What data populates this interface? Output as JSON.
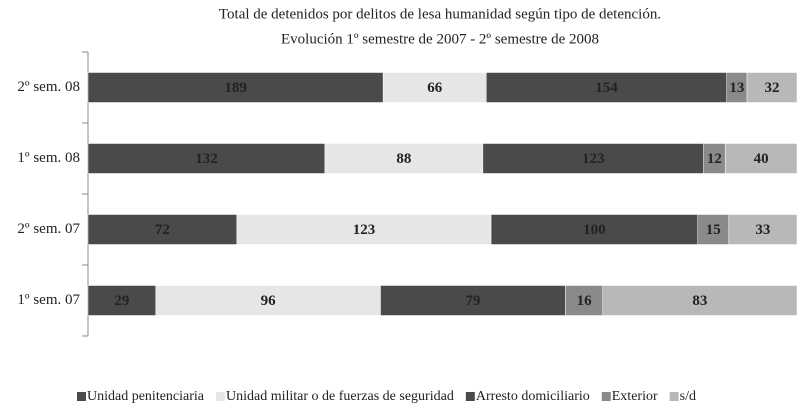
{
  "chart_data": {
    "type": "stacked_bar_100",
    "orientation": "horizontal",
    "title": "Total de detenidos por delitos de lesa humanidad según tipo de detención.",
    "subtitle": "Evolución 1º semestre de 2007 - 2º semestre de 2008",
    "categories": [
      "2º sem. 08",
      "1º sem. 08",
      "2º sem. 07",
      "1º sem. 07"
    ],
    "series": [
      {
        "name": "Unidad penitenciaria",
        "color": "#4a4a4a",
        "values": [
          189,
          132,
          72,
          29
        ]
      },
      {
        "name": "Unidad militar o de fuerzas de seguridad",
        "color": "#e6e6e6",
        "values": [
          66,
          88,
          123,
          96
        ]
      },
      {
        "name": "Arresto domiciliario",
        "color": "#4a4a4a",
        "values": [
          154,
          123,
          100,
          79
        ]
      },
      {
        "name": "Exterior",
        "color": "#8a8a8a",
        "values": [
          13,
          12,
          15,
          16
        ]
      },
      {
        "name": "s/d",
        "color": "#b8b8b8",
        "values": [
          32,
          40,
          33,
          83
        ]
      }
    ],
    "legend": "bottom"
  }
}
